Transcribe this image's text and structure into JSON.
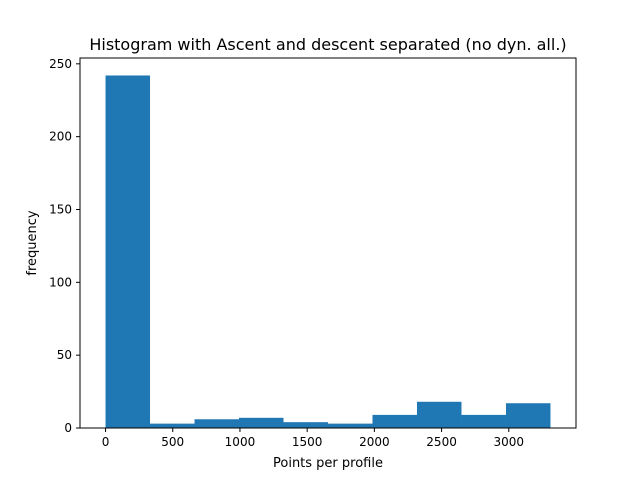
{
  "chart_data": {
    "type": "bar",
    "title": "Histogram with Ascent and descent separated (no dyn. all.)",
    "xlabel": "Points per profile",
    "ylabel": "frequency",
    "bin_edges": [
      0,
      331,
      662,
      993,
      1324,
      1655,
      1986,
      2317,
      2648,
      2979,
      3310
    ],
    "values": [
      242,
      3,
      6,
      7,
      4,
      3,
      9,
      18,
      9,
      17
    ],
    "xlim": [
      -190,
      3500
    ],
    "ylim": [
      0,
      254
    ],
    "xticks": [
      0,
      500,
      1000,
      1500,
      2000,
      2500,
      3000
    ],
    "yticks": [
      0,
      50,
      100,
      150,
      200,
      250
    ],
    "bar_color": "#1f77b4",
    "grid": false,
    "legend": "none"
  }
}
